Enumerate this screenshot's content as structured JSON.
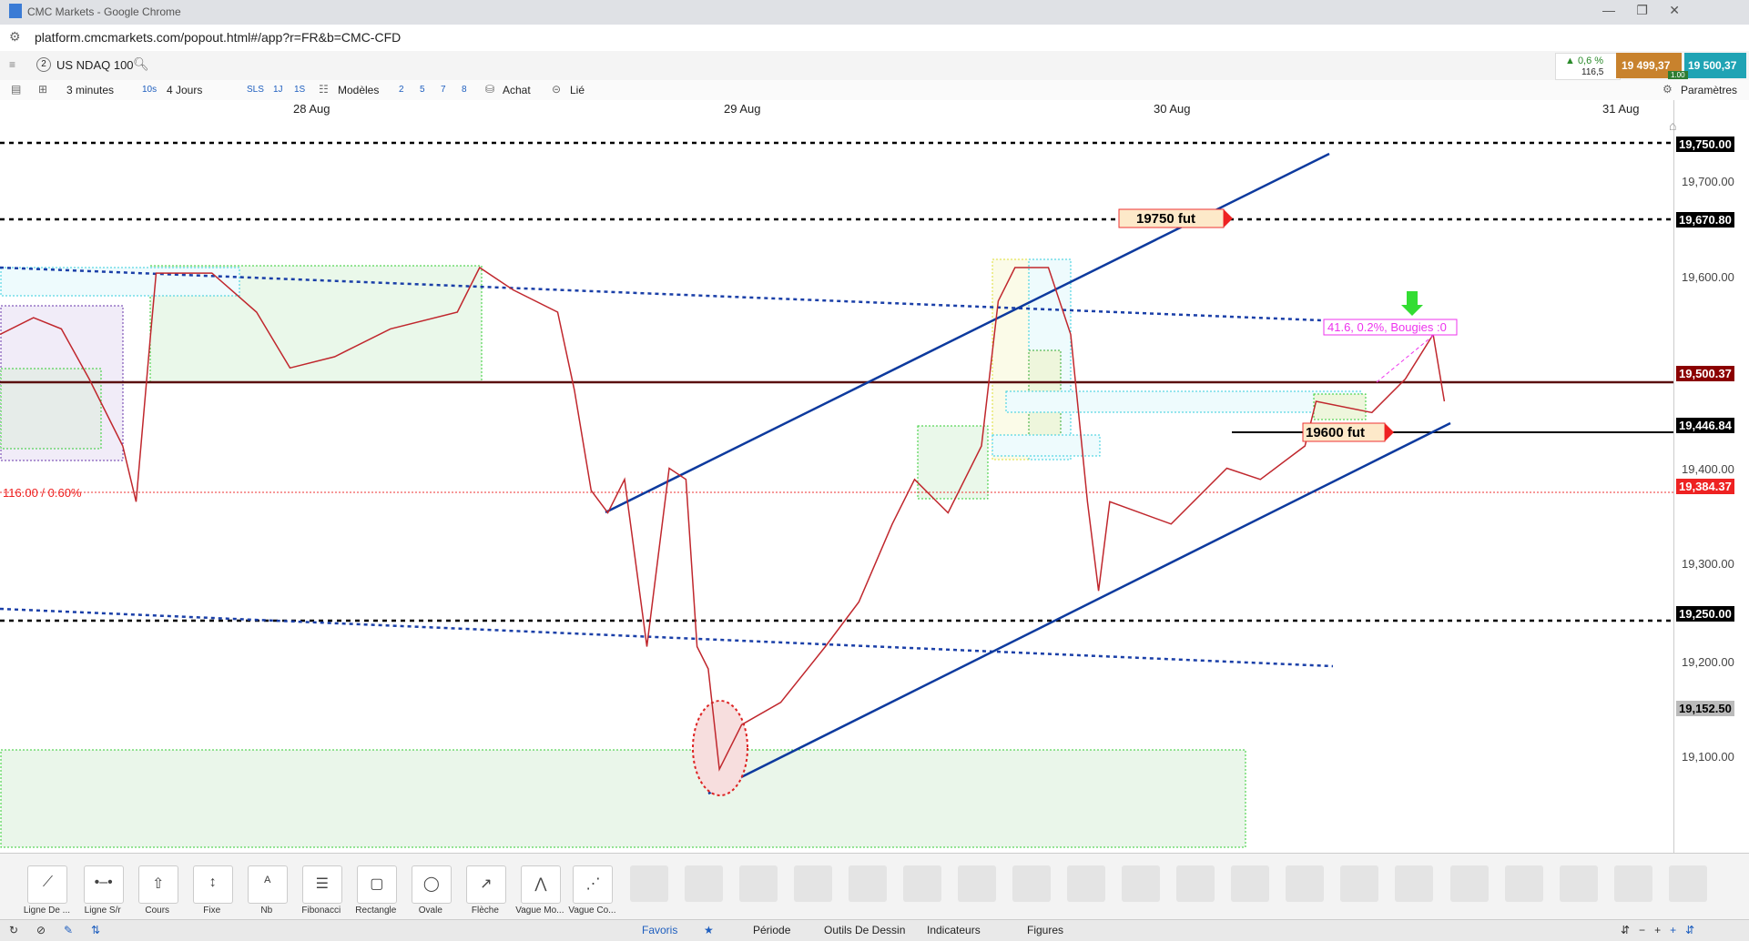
{
  "window": {
    "title": "CMC Markets - Google Chrome",
    "url": "platform.cmcmarkets.com/popout.html#/app?r=FR&b=CMC-CFD"
  },
  "instrument": {
    "badge": "2",
    "name": "US NDAQ 100",
    "change": "▲ 0,6 %",
    "change_points": "116,5",
    "sell": "19 499,37",
    "buy": "19 500,37",
    "size": "1.00"
  },
  "toolbar": {
    "interval": "3 minutes",
    "interval_short": "10s",
    "range": "4 Jours",
    "items": [
      "SLS",
      "1J",
      "1S"
    ],
    "templates": "Modèles",
    "quick": [
      "2",
      "5",
      "7",
      "8"
    ],
    "buy": "Achat",
    "linked": "Lié",
    "settings": "Paramètres"
  },
  "dates": [
    "28 Aug",
    "29 Aug",
    "30 Aug",
    "31 Aug"
  ],
  "price_axis": [
    "19,750.00",
    "19,670.80",
    "19,700.00",
    "19,600.00",
    "19,500.37",
    "19,446.84",
    "19,400.00",
    "19,384.37",
    "19,300.00",
    "19,250.00",
    "19,200.00",
    "19,152.50",
    "19,100.00"
  ],
  "annotations": {
    "upper_target": "19750  fut",
    "lower_target": "19600 fut",
    "change_line": "116.00 / 0.60%",
    "fib": "41.6, 0.2%, Bougies :0"
  },
  "tools": [
    "Ligne De ...",
    "Ligne S/r",
    "Cours",
    "Fixe",
    "Nb",
    "Fibonacci",
    "Rectangle",
    "Ovale",
    "Flèche",
    "Vague Mo...",
    "Vague Co..."
  ],
  "tabs": [
    "Favoris",
    "Période",
    "Outils De Dessin",
    "Indicateurs",
    "Figures"
  ]
}
